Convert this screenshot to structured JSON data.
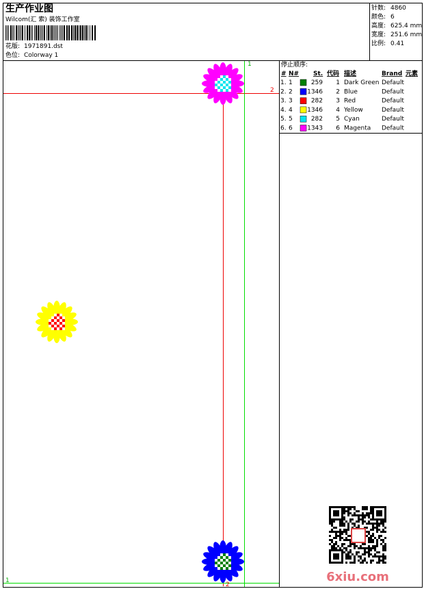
{
  "header": {
    "title": "生产作业图",
    "studio": "Wilcom(汇 索) 装饰工作室",
    "design_label": "花版:",
    "design": "1971891.dst",
    "colorway_label": "色位:",
    "colorway": "Colorway 1"
  },
  "info": [
    {
      "label": "针数:",
      "value": "4860"
    },
    {
      "label": "颜色:",
      "value": "6"
    },
    {
      "label": "高度:",
      "value": "625.4 mm"
    },
    {
      "label": "宽度:",
      "value": "251.6 mm"
    },
    {
      "label": "比例:",
      "value": "0.41"
    }
  ],
  "stop_sequence": {
    "title": "停止顺序:",
    "columns": [
      "#",
      "N#",
      "St.",
      "代码",
      "描述",
      "Brand",
      "元素"
    ],
    "rows": [
      {
        "index": "1.",
        "needle": "1",
        "color": "#008000",
        "stitches": 259,
        "code": 1,
        "description": "Dark Green",
        "brand": "Default"
      },
      {
        "index": "2.",
        "needle": "2",
        "color": "#0000ff",
        "stitches": 1346,
        "code": 2,
        "description": "Blue",
        "brand": "Default"
      },
      {
        "index": "3.",
        "needle": "3",
        "color": "#ff0000",
        "stitches": 282,
        "code": 3,
        "description": "Red",
        "brand": "Default"
      },
      {
        "index": "4.",
        "needle": "4",
        "color": "#ffff00",
        "stitches": 1346,
        "code": 4,
        "description": "Yellow",
        "brand": "Default"
      },
      {
        "index": "5.",
        "needle": "5",
        "color": "#00e5ee",
        "stitches": 282,
        "code": 5,
        "description": "Cyan",
        "brand": "Default"
      },
      {
        "index": "6.",
        "needle": "6",
        "color": "#ff00ff",
        "stitches": 1343,
        "code": 6,
        "description": "Magenta",
        "brand": "Default"
      }
    ]
  },
  "guides": {
    "red_h": "2",
    "red_v": "2",
    "green_v": "1",
    "green_h": "1"
  },
  "watermark": "6xiu.com"
}
